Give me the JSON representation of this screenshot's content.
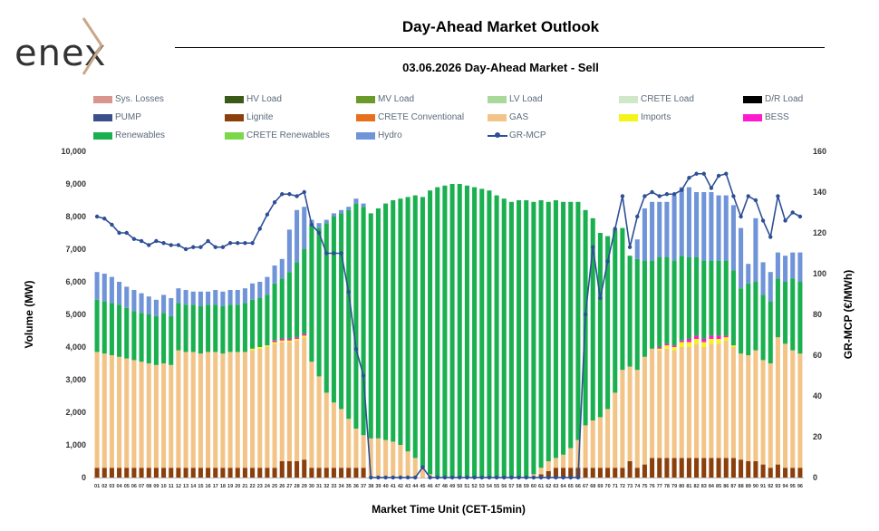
{
  "header": {
    "logo_text": "enex",
    "title": "Day-Ahead Market Outlook",
    "subtitle": "03.06.2026  Day-Ahead Market - Sell"
  },
  "chart_data": {
    "type": "bar",
    "stacked": true,
    "title": "03.06.2026  Day-Ahead Market - Sell",
    "xlabel": "Market Time Unit (CET-15min)",
    "ylabel": "Volume (MW)",
    "y2label": "GR-MCP (€/MWh)",
    "ylim": [
      0,
      10000
    ],
    "y2lim": [
      0,
      160
    ],
    "yticks": [
      "0",
      "1,000",
      "2,000",
      "3,000",
      "4,000",
      "5,000",
      "6,000",
      "7,000",
      "8,000",
      "9,000",
      "10,000"
    ],
    "y2ticks": [
      "0",
      "20",
      "40",
      "60",
      "80",
      "100",
      "120",
      "140",
      "160"
    ],
    "grid": false,
    "legend_position": "top",
    "categories": [
      "01",
      "02",
      "03",
      "04",
      "05",
      "06",
      "07",
      "08",
      "09",
      "10",
      "11",
      "12",
      "13",
      "14",
      "15",
      "16",
      "17",
      "18",
      "19",
      "20",
      "21",
      "22",
      "23",
      "24",
      "25",
      "26",
      "27",
      "28",
      "29",
      "30",
      "31",
      "32",
      "33",
      "34",
      "35",
      "36",
      "37",
      "38",
      "39",
      "40",
      "41",
      "42",
      "43",
      "44",
      "45",
      "46",
      "47",
      "48",
      "49",
      "50",
      "51",
      "52",
      "53",
      "54",
      "55",
      "56",
      "57",
      "58",
      "59",
      "60",
      "61",
      "62",
      "63",
      "64",
      "65",
      "66",
      "67",
      "68",
      "69",
      "70",
      "71",
      "72",
      "73",
      "74",
      "75",
      "76",
      "77",
      "78",
      "79",
      "80",
      "81",
      "82",
      "83",
      "84",
      "85",
      "86",
      "87",
      "88",
      "89",
      "90",
      "91",
      "92",
      "93",
      "94",
      "95",
      "96"
    ],
    "legend": [
      {
        "name": "Sys. Losses",
        "color": "#d9968e"
      },
      {
        "name": "HV Load",
        "color": "#3a5a1a"
      },
      {
        "name": "MV Load",
        "color": "#6a9a2a"
      },
      {
        "name": "LV Load",
        "color": "#a8d89a"
      },
      {
        "name": "CRETE Load",
        "color": "#cfe8c8"
      },
      {
        "name": "D/R Load",
        "color": "#000000"
      },
      {
        "name": "PUMP",
        "color": "#3b4f8a"
      },
      {
        "name": "Lignite",
        "color": "#8b3f0a"
      },
      {
        "name": "CRETE Conventional",
        "color": "#e8701a"
      },
      {
        "name": "GAS",
        "color": "#f3c487"
      },
      {
        "name": "Imports",
        "color": "#f4f41a"
      },
      {
        "name": "BESS",
        "color": "#ff1ad0"
      },
      {
        "name": "Renewables",
        "color": "#1ab050"
      },
      {
        "name": "CRETE Renewables",
        "color": "#7ad84a"
      },
      {
        "name": "Hydro",
        "color": "#7094d8"
      },
      {
        "name": "GR-MCP",
        "color": "#2e4f96"
      }
    ],
    "series": [
      {
        "name": "Lignite",
        "color": "#8b3f0a",
        "values": [
          300,
          300,
          300,
          300,
          300,
          300,
          300,
          300,
          300,
          300,
          300,
          300,
          300,
          300,
          300,
          300,
          300,
          300,
          300,
          300,
          300,
          300,
          300,
          300,
          300,
          500,
          500,
          500,
          550,
          300,
          300,
          300,
          300,
          300,
          300,
          300,
          300,
          0,
          0,
          0,
          0,
          0,
          0,
          0,
          0,
          0,
          0,
          0,
          0,
          0,
          0,
          0,
          0,
          0,
          0,
          0,
          0,
          0,
          0,
          0,
          100,
          200,
          300,
          300,
          300,
          300,
          300,
          300,
          300,
          300,
          300,
          300,
          500,
          300,
          400,
          600,
          600,
          600,
          600,
          600,
          600,
          600,
          600,
          600,
          600,
          600,
          600,
          550,
          500,
          500,
          400,
          300,
          400,
          300,
          300,
          300
        ]
      },
      {
        "name": "GAS",
        "color": "#f3c487",
        "values": [
          3550,
          3500,
          3450,
          3400,
          3350,
          3300,
          3250,
          3200,
          3150,
          3200,
          3150,
          3600,
          3550,
          3550,
          3500,
          3550,
          3550,
          3500,
          3550,
          3550,
          3550,
          3600,
          3650,
          3700,
          3800,
          3650,
          3650,
          3700,
          3750,
          3250,
          2800,
          2300,
          2000,
          1800,
          1500,
          1200,
          1000,
          1200,
          1200,
          1150,
          1100,
          1000,
          800,
          600,
          300,
          100,
          0,
          0,
          0,
          0,
          0,
          0,
          0,
          0,
          0,
          0,
          0,
          0,
          0,
          100,
          200,
          300,
          300,
          400,
          600,
          850,
          1300,
          1450,
          1550,
          1800,
          2300,
          3000,
          2900,
          3000,
          3300,
          3350,
          3300,
          3350,
          3300,
          3400,
          3400,
          3500,
          3400,
          3500,
          3500,
          3600,
          3400,
          3250,
          3250,
          3400,
          3200,
          3200,
          3900,
          3800,
          3600,
          3500
        ]
      },
      {
        "name": "Imports",
        "color": "#f4f41a",
        "values": [
          0,
          0,
          0,
          0,
          0,
          0,
          0,
          0,
          0,
          0,
          0,
          0,
          0,
          0,
          0,
          0,
          0,
          0,
          0,
          0,
          0,
          50,
          50,
          50,
          50,
          50,
          50,
          50,
          50,
          0,
          0,
          0,
          0,
          0,
          0,
          0,
          0,
          0,
          0,
          0,
          0,
          0,
          0,
          0,
          0,
          0,
          0,
          0,
          0,
          0,
          0,
          0,
          0,
          0,
          0,
          0,
          0,
          0,
          0,
          0,
          0,
          0,
          0,
          0,
          0,
          0,
          0,
          0,
          0,
          0,
          0,
          0,
          0,
          0,
          0,
          0,
          50,
          100,
          100,
          150,
          150,
          150,
          150,
          150,
          150,
          100,
          50,
          0,
          0,
          0,
          0,
          0,
          0,
          0,
          0,
          0
        ]
      },
      {
        "name": "BESS",
        "color": "#ff1ad0",
        "values": [
          0,
          0,
          0,
          0,
          0,
          0,
          0,
          0,
          0,
          0,
          0,
          0,
          0,
          0,
          0,
          0,
          0,
          0,
          0,
          0,
          0,
          0,
          0,
          0,
          50,
          50,
          50,
          50,
          50,
          0,
          0,
          0,
          0,
          0,
          0,
          0,
          0,
          0,
          0,
          0,
          0,
          0,
          0,
          0,
          0,
          0,
          0,
          0,
          0,
          0,
          0,
          0,
          0,
          0,
          0,
          0,
          0,
          0,
          0,
          0,
          0,
          0,
          0,
          0,
          0,
          0,
          0,
          0,
          0,
          0,
          0,
          0,
          0,
          0,
          0,
          0,
          50,
          50,
          50,
          50,
          100,
          100,
          100,
          100,
          100,
          50,
          0,
          0,
          0,
          0,
          0,
          0,
          0,
          0,
          0,
          0
        ]
      },
      {
        "name": "Renewables",
        "color": "#1ab050",
        "values": [
          1600,
          1600,
          1600,
          1600,
          1550,
          1500,
          1500,
          1500,
          1500,
          1550,
          1500,
          1450,
          1450,
          1450,
          1450,
          1450,
          1450,
          1450,
          1450,
          1450,
          1500,
          1500,
          1500,
          1550,
          1750,
          1850,
          2050,
          2300,
          2600,
          4200,
          4550,
          5200,
          5700,
          6000,
          6400,
          6900,
          7000,
          6900,
          7050,
          7250,
          7400,
          7550,
          7800,
          8050,
          8300,
          8700,
          8900,
          8950,
          9000,
          9000,
          8950,
          8900,
          8850,
          8800,
          8650,
          8550,
          8450,
          8500,
          8500,
          8350,
          8200,
          7950,
          7900,
          7750,
          7550,
          7300,
          6600,
          6200,
          5650,
          5300,
          5000,
          4350,
          3400,
          3400,
          2950,
          2700,
          2750,
          2650,
          2600,
          2600,
          2500,
          2400,
          2400,
          2300,
          2300,
          2300,
          2300,
          2000,
          2200,
          2100,
          2000,
          1900,
          1800,
          1900,
          2200,
          2200
        ]
      },
      {
        "name": "Hydro",
        "color": "#7094d8",
        "values": [
          850,
          850,
          800,
          700,
          650,
          650,
          600,
          550,
          500,
          550,
          550,
          450,
          450,
          400,
          450,
          400,
          450,
          450,
          450,
          450,
          450,
          500,
          500,
          550,
          550,
          600,
          1300,
          1600,
          1300,
          150,
          150,
          100,
          100,
          100,
          100,
          150,
          100,
          0,
          0,
          0,
          0,
          0,
          0,
          0,
          0,
          0,
          0,
          0,
          0,
          0,
          0,
          0,
          0,
          0,
          0,
          0,
          0,
          0,
          0,
          0,
          0,
          0,
          0,
          0,
          0,
          0,
          0,
          0,
          0,
          0,
          0,
          0,
          0,
          600,
          1600,
          1800,
          1700,
          1700,
          2000,
          2100,
          2150,
          2000,
          2100,
          2100,
          2000,
          2000,
          2000,
          1850,
          600,
          1950,
          1000,
          900,
          800,
          800,
          800,
          900
        ]
      },
      {
        "name": "GR-MCP",
        "color": "#2e4f96",
        "axis": "right",
        "type": "line",
        "values": [
          128,
          127,
          124,
          120,
          120,
          117,
          116,
          114,
          116,
          115,
          114,
          114,
          112,
          113,
          113,
          116,
          113,
          113,
          115,
          115,
          115,
          115,
          122,
          129,
          135,
          139,
          139,
          138,
          140,
          124,
          120,
          110,
          110,
          110,
          91,
          63,
          50,
          0,
          0,
          0,
          0,
          0,
          0,
          0,
          5,
          0,
          0,
          0,
          0,
          0,
          0,
          0,
          0,
          0,
          0,
          0,
          0,
          0,
          0,
          0,
          0,
          0,
          0,
          0,
          0,
          0,
          80,
          113,
          88,
          106,
          122,
          138,
          113,
          128,
          138,
          140,
          138,
          139,
          139,
          141,
          147,
          149,
          149,
          142,
          148,
          149,
          138,
          128,
          138,
          136,
          126,
          118,
          138,
          126,
          130,
          128
        ]
      }
    ]
  }
}
